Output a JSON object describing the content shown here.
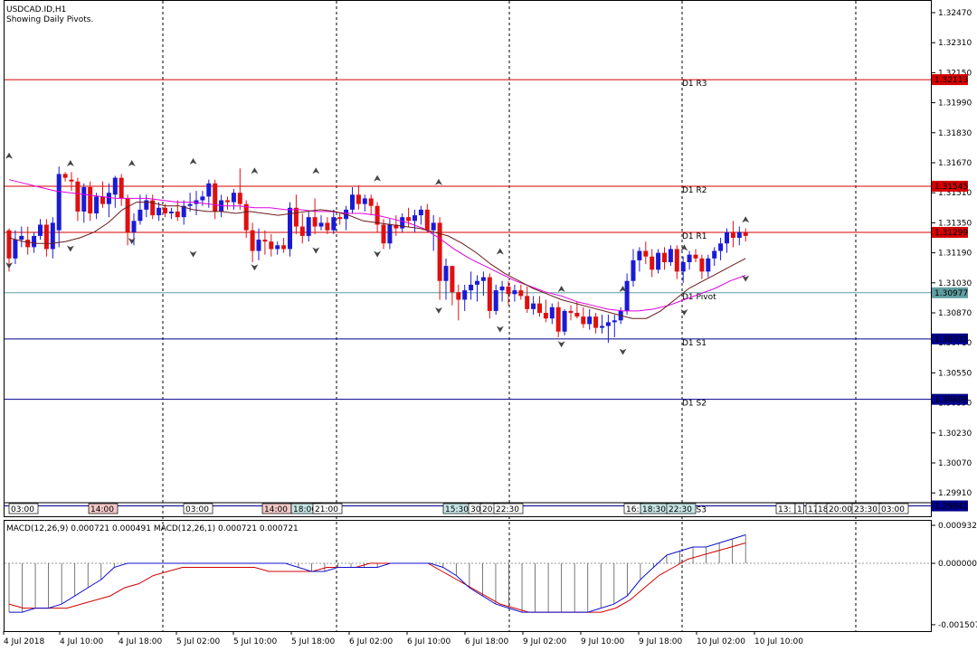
{
  "header": {
    "symbol": "USDCAD.ID,H1",
    "subtitle": "Showing Daily Pivots."
  },
  "colors": {
    "bull": "#1a1ad6",
    "bear": "#e01010",
    "resistance": "#d40000",
    "support": "#00008b",
    "pivot": "#5f9ea0",
    "ma_fast": "#6b1a1a",
    "ma_slow": "#e000e0",
    "macd_main": "#1010d0",
    "macd_signal": "#d00000"
  },
  "pivots": [
    {
      "name": "D1 R3",
      "value": 1.32113,
      "price_label": "1.32113",
      "kind": "resistance"
    },
    {
      "name": "D1 R2",
      "value": 1.31545,
      "price_label": "1.31545",
      "kind": "resistance"
    },
    {
      "name": "D1 R1",
      "value": 1.31299,
      "price_label": "1.31299",
      "kind": "resistance"
    },
    {
      "name": "D1 Pivot",
      "value": 1.30977,
      "price_label": "1.30977",
      "kind": "pivot"
    },
    {
      "name": "D1 S1",
      "value": 1.30731,
      "price_label": "1.30731",
      "kind": "support"
    },
    {
      "name": "D1 S2",
      "value": 1.30409,
      "price_label": "1.30409",
      "kind": "support"
    },
    {
      "name": "D1 S3",
      "value": 1.29841,
      "price_label": "1.29841",
      "kind": "support"
    }
  ],
  "price_axis": {
    "ticks": [
      "1.32470",
      "1.32310",
      "1.32150",
      "1.31990",
      "1.31830",
      "1.31670",
      "1.31510",
      "1.31350",
      "1.31190",
      "1.31030",
      "1.30870",
      "1.30710",
      "1.30550",
      "1.30390",
      "1.30230",
      "1.30070",
      "1.29910"
    ]
  },
  "session_labels": [
    {
      "text": "03:00",
      "style": "plain"
    },
    {
      "text": "14:00",
      "style": "red"
    },
    {
      "text": "03:00",
      "style": "plain"
    },
    {
      "text": "14:00",
      "style": "red"
    },
    {
      "text": "18:00",
      "style": "teal"
    },
    {
      "text": "21:00",
      "style": "plain"
    },
    {
      "text": "15:30",
      "style": "teal"
    },
    {
      "text": "30",
      "style": "plain"
    },
    {
      "text": "20:",
      "style": "plain"
    },
    {
      "text": "22:30",
      "style": "plain"
    },
    {
      "text": "16:",
      "style": "plain"
    },
    {
      "text": "18:30",
      "style": "teal"
    },
    {
      "text": "22:30",
      "style": "teal"
    },
    {
      "text": "13:",
      "style": "plain"
    },
    {
      "text": "1",
      "style": "plain"
    },
    {
      "text": "17",
      "style": "plain"
    },
    {
      "text": "18",
      "style": "plain"
    },
    {
      "text": "20:00",
      "style": "plain"
    },
    {
      "text": "23:30",
      "style": "plain"
    },
    {
      "text": "03:00",
      "style": "plain"
    }
  ],
  "macd": {
    "label": "MACD(12,26,9) 0.000721 0.000491 MACD(12,26,1) 0.000721 0.000721",
    "ticks": [
      "0.000932",
      "0.000000",
      "-0.001507"
    ]
  },
  "time_axis": {
    "labels": [
      "4 Jul 2018",
      "4 Jul 10:00",
      "4 Jul 18:00",
      "5 Jul 02:00",
      "5 Jul 10:00",
      "5 Jul 18:00",
      "6 Jul 02:00",
      "6 Jul 10:00",
      "6 Jul 18:00",
      "9 Jul 02:00",
      "9 Jul 10:00",
      "9 Jul 18:00",
      "10 Jul 02:00",
      "10 Jul 10:00"
    ]
  },
  "chart_data": {
    "type": "candlestick",
    "symbol": "USDCAD.ID",
    "timeframe": "H1",
    "y_range": [
      1.2984,
      1.3251
    ],
    "candles": [
      [
        1.3131,
        1.3132,
        1.3109,
        1.3116
      ],
      [
        1.3116,
        1.3131,
        1.3113,
        1.3126
      ],
      [
        1.3126,
        1.3133,
        1.3122,
        1.3128
      ],
      [
        1.3126,
        1.3133,
        1.3118,
        1.3122
      ],
      [
        1.3122,
        1.313,
        1.3119,
        1.3128
      ],
      [
        1.3128,
        1.3137,
        1.3126,
        1.3134
      ],
      [
        1.3134,
        1.3137,
        1.3117,
        1.3121
      ],
      [
        1.3121,
        1.3138,
        1.3116,
        1.3135
      ],
      [
        1.3131,
        1.3165,
        1.3122,
        1.3161
      ],
      [
        1.3161,
        1.3162,
        1.3157,
        1.3159
      ],
      [
        1.3158,
        1.3162,
        1.3152,
        1.3157
      ],
      [
        1.3157,
        1.3159,
        1.3136,
        1.3141
      ],
      [
        1.3141,
        1.3156,
        1.3135,
        1.3154
      ],
      [
        1.3154,
        1.3157,
        1.3136,
        1.314
      ],
      [
        1.314,
        1.3151,
        1.3137,
        1.3149
      ],
      [
        1.3149,
        1.3157,
        1.3143,
        1.3145
      ],
      [
        1.3145,
        1.3156,
        1.3138,
        1.3151
      ],
      [
        1.315,
        1.316,
        1.3143,
        1.3159
      ],
      [
        1.3159,
        1.3161,
        1.3144,
        1.3148
      ],
      [
        1.3148,
        1.315,
        1.3123,
        1.313
      ],
      [
        1.313,
        1.314,
        1.3123,
        1.3136
      ],
      [
        1.3136,
        1.315,
        1.3134,
        1.3142
      ],
      [
        1.3142,
        1.315,
        1.3138,
        1.3147
      ],
      [
        1.3147,
        1.315,
        1.3137,
        1.3139
      ],
      [
        1.3139,
        1.3146,
        1.3136,
        1.3143
      ],
      [
        1.3143,
        1.3145,
        1.3138,
        1.314
      ],
      [
        1.314,
        1.3143,
        1.3137,
        1.3141
      ],
      [
        1.3141,
        1.3147,
        1.3136,
        1.3138
      ],
      [
        1.3138,
        1.3147,
        1.3134,
        1.3144
      ],
      [
        1.3144,
        1.3151,
        1.3141,
        1.3145
      ],
      [
        1.3145,
        1.3152,
        1.3139,
        1.3147
      ],
      [
        1.3147,
        1.3152,
        1.3144,
        1.3149
      ],
      [
        1.3149,
        1.3158,
        1.3143,
        1.3156
      ],
      [
        1.3156,
        1.3158,
        1.3137,
        1.3141
      ],
      [
        1.3141,
        1.315,
        1.3138,
        1.3147
      ],
      [
        1.3147,
        1.3149,
        1.3142,
        1.3146
      ],
      [
        1.3146,
        1.3153,
        1.3142,
        1.3151
      ],
      [
        1.3151,
        1.3164,
        1.3142,
        1.3145
      ],
      [
        1.3145,
        1.3147,
        1.3127,
        1.3131
      ],
      [
        1.3131,
        1.3135,
        1.3114,
        1.312
      ],
      [
        1.312,
        1.3132,
        1.3115,
        1.3126
      ],
      [
        1.3126,
        1.3131,
        1.3118,
        1.3125
      ],
      [
        1.3125,
        1.3129,
        1.3117,
        1.3121
      ],
      [
        1.3121,
        1.3125,
        1.3118,
        1.3123
      ],
      [
        1.3123,
        1.3127,
        1.3119,
        1.3121
      ],
      [
        1.3121,
        1.3146,
        1.3117,
        1.3143
      ],
      [
        1.3143,
        1.315,
        1.3129,
        1.3133
      ],
      [
        1.3133,
        1.314,
        1.3124,
        1.3128
      ],
      [
        1.3128,
        1.3141,
        1.3125,
        1.3138
      ],
      [
        1.3138,
        1.3148,
        1.3129,
        1.3133
      ],
      [
        1.3133,
        1.3139,
        1.3131,
        1.3135
      ],
      [
        1.3135,
        1.3138,
        1.3129,
        1.3131
      ],
      [
        1.3131,
        1.3142,
        1.3129,
        1.3138
      ],
      [
        1.3138,
        1.314,
        1.3134,
        1.3137
      ],
      [
        1.3137,
        1.3144,
        1.3131,
        1.3142
      ],
      [
        1.3142,
        1.3154,
        1.314,
        1.315
      ],
      [
        1.315,
        1.3155,
        1.3142,
        1.3145
      ],
      [
        1.3145,
        1.315,
        1.3141,
        1.3148
      ],
      [
        1.3148,
        1.315,
        1.3139,
        1.3144
      ],
      [
        1.3144,
        1.3146,
        1.313,
        1.3134
      ],
      [
        1.3134,
        1.3137,
        1.3121,
        1.3124
      ],
      [
        1.3124,
        1.3137,
        1.3121,
        1.3134
      ],
      [
        1.3134,
        1.3139,
        1.3128,
        1.3132
      ],
      [
        1.3132,
        1.314,
        1.313,
        1.3138
      ],
      [
        1.3138,
        1.3143,
        1.3133,
        1.3136
      ],
      [
        1.3136,
        1.3142,
        1.313,
        1.3139
      ],
      [
        1.3139,
        1.3144,
        1.3134,
        1.3142
      ],
      [
        1.3142,
        1.3145,
        1.313,
        1.3131
      ],
      [
        1.3131,
        1.3139,
        1.312,
        1.3135
      ],
      [
        1.3135,
        1.3138,
        1.3094,
        1.3104
      ],
      [
        1.3104,
        1.3116,
        1.3094,
        1.3112
      ],
      [
        1.3112,
        1.3112,
        1.3091,
        1.3098
      ],
      [
        1.3098,
        1.3102,
        1.3083,
        1.3094
      ],
      [
        1.3094,
        1.3102,
        1.3088,
        1.3099
      ],
      [
        1.3099,
        1.3109,
        1.3094,
        1.3102
      ],
      [
        1.3102,
        1.3107,
        1.3093,
        1.3104
      ],
      [
        1.3104,
        1.3109,
        1.3096,
        1.3106
      ],
      [
        1.3106,
        1.3108,
        1.3084,
        1.3088
      ],
      [
        1.3088,
        1.3102,
        1.3086,
        1.3099
      ],
      [
        1.3099,
        1.3104,
        1.3093,
        1.3101
      ],
      [
        1.3101,
        1.3104,
        1.3091,
        1.3097
      ],
      [
        1.3097,
        1.3102,
        1.3093,
        1.3099
      ],
      [
        1.3099,
        1.3102,
        1.3094,
        1.3096
      ],
      [
        1.3096,
        1.3101,
        1.3087,
        1.3089
      ],
      [
        1.3089,
        1.3096,
        1.3086,
        1.3092
      ],
      [
        1.3092,
        1.3096,
        1.3085,
        1.3087
      ],
      [
        1.3087,
        1.3094,
        1.3082,
        1.3084
      ],
      [
        1.3084,
        1.3092,
        1.3081,
        1.309
      ],
      [
        1.309,
        1.3093,
        1.3074,
        1.3077
      ],
      [
        1.3077,
        1.3089,
        1.3075,
        1.3088
      ],
      [
        1.3088,
        1.3091,
        1.3083,
        1.3087
      ],
      [
        1.3087,
        1.3093,
        1.3084,
        1.3085
      ],
      [
        1.3085,
        1.309,
        1.3079,
        1.3081
      ],
      [
        1.3081,
        1.3089,
        1.3078,
        1.3085
      ],
      [
        1.3085,
        1.3087,
        1.3076,
        1.3079
      ],
      [
        1.3079,
        1.3086,
        1.3076,
        1.308
      ],
      [
        1.308,
        1.3086,
        1.3071,
        1.3082
      ],
      [
        1.3082,
        1.3086,
        1.3074,
        1.3083
      ],
      [
        1.3083,
        1.309,
        1.3081,
        1.3088
      ],
      [
        1.3088,
        1.3108,
        1.3086,
        1.3104
      ],
      [
        1.3104,
        1.3121,
        1.3101,
        1.3115
      ],
      [
        1.3115,
        1.3122,
        1.3109,
        1.312
      ],
      [
        1.312,
        1.3125,
        1.3113,
        1.3117
      ],
      [
        1.3117,
        1.3121,
        1.3106,
        1.311
      ],
      [
        1.311,
        1.3121,
        1.3108,
        1.3119
      ],
      [
        1.3119,
        1.3122,
        1.311,
        1.3114
      ],
      [
        1.3114,
        1.3123,
        1.3112,
        1.3121
      ],
      [
        1.3121,
        1.3123,
        1.3105,
        1.3109
      ],
      [
        1.3109,
        1.3117,
        1.3103,
        1.3114
      ],
      [
        1.3114,
        1.312,
        1.311,
        1.3118
      ],
      [
        1.3118,
        1.3121,
        1.3114,
        1.3116
      ],
      [
        1.3116,
        1.3118,
        1.3105,
        1.3109
      ],
      [
        1.3109,
        1.3118,
        1.3106,
        1.3116
      ],
      [
        1.3116,
        1.3122,
        1.3112,
        1.312
      ],
      [
        1.312,
        1.3127,
        1.3115,
        1.3124
      ],
      [
        1.3124,
        1.3132,
        1.3119,
        1.313
      ],
      [
        1.313,
        1.3136,
        1.3122,
        1.3127
      ],
      [
        1.3127,
        1.3133,
        1.3123,
        1.313
      ],
      [
        1.313,
        1.3132,
        1.3125,
        1.3128
      ]
    ],
    "ma_fast": [
      1.3127,
      1.3125,
      1.3124,
      1.3124,
      1.3125,
      1.3127,
      1.313,
      1.3135,
      1.3142,
      1.3146,
      1.3146,
      1.3144,
      1.3144,
      1.3142,
      1.3141,
      1.3141,
      1.314,
      1.3141,
      1.314,
      1.3139,
      1.314,
      1.3141,
      1.3142,
      1.3141,
      1.3139,
      1.3136,
      1.3135,
      1.3134,
      1.3133,
      1.3132,
      1.313,
      1.3128,
      1.3124,
      1.3119,
      1.3113,
      1.3108,
      1.3104,
      1.31,
      1.3097,
      1.3094,
      1.3092,
      1.309,
      1.3088,
      1.3086,
      1.3084,
      1.3084,
      1.3088,
      1.3094,
      1.31,
      1.3104,
      1.3108,
      1.3112,
      1.3116
    ],
    "ma_slow": [
      1.3158,
      1.3156,
      1.3154,
      1.3152,
      1.3151,
      1.315,
      1.3149,
      1.3148,
      1.3148,
      1.3148,
      1.3147,
      1.3146,
      1.3146,
      1.3145,
      1.3144,
      1.3144,
      1.3143,
      1.3143,
      1.3142,
      1.3142,
      1.3141,
      1.3141,
      1.314,
      1.314,
      1.3139,
      1.3137,
      1.3135,
      1.3132,
      1.3127,
      1.3121,
      1.3116,
      1.3112,
      1.3108,
      1.3104,
      1.3101,
      1.3098,
      1.3096,
      1.3093,
      1.3091,
      1.3089,
      1.3088,
      1.3088,
      1.3089,
      1.3091,
      1.3094,
      1.3097,
      1.31,
      1.3104,
      1.3107
    ],
    "macd_main": [
      -0.0012,
      -0.0012,
      -0.0011,
      -0.0011,
      -0.001,
      -0.0008,
      -0.0006,
      -0.0004,
      -0.0001,
      0.0,
      0.0,
      0.0,
      0.0,
      0.0,
      0.0,
      0.0,
      0.0,
      0.0,
      0.0,
      0.0,
      0.0,
      0.0,
      -0.0001,
      -0.0002,
      -0.0002,
      -0.0001,
      -0.0001,
      -0.0001,
      -0.0001,
      0.0,
      0.0,
      0.0,
      0.0,
      -0.0001,
      -0.0003,
      -0.0006,
      -0.0008,
      -0.001,
      -0.0011,
      -0.0012,
      -0.0012,
      -0.0012,
      -0.0012,
      -0.0012,
      -0.0012,
      -0.0011,
      -0.001,
      -0.0008,
      -0.0004,
      -0.0001,
      0.0002,
      0.0003,
      0.0004,
      0.0004,
      0.0005,
      0.0006,
      0.0007
    ],
    "macd_signal": [
      -0.001,
      -0.0011,
      -0.0011,
      -0.0011,
      -0.0011,
      -0.001,
      -0.0009,
      -0.0008,
      -0.0006,
      -0.0005,
      -0.0003,
      -0.0002,
      -0.0001,
      -0.0001,
      -0.0001,
      -0.0001,
      -0.0001,
      -0.0001,
      -0.0002,
      -0.0002,
      -0.0002,
      -0.0002,
      -0.0001,
      -0.0001,
      -0.0001,
      0.0,
      0.0,
      0.0,
      0.0,
      0.0,
      -0.0002,
      -0.0004,
      -0.0006,
      -0.0008,
      -0.001,
      -0.0011,
      -0.0012,
      -0.0012,
      -0.0012,
      -0.0012,
      -0.0012,
      -0.0012,
      -0.0011,
      -0.0009,
      -0.0006,
      -0.0003,
      -0.0001,
      0.0001,
      0.0002,
      0.0003,
      0.0004,
      0.0005
    ],
    "fractals_up": [
      1.3171,
      1.3167,
      1.3167,
      1.3168,
      1.3163,
      1.3163,
      1.3159,
      1.3157,
      1.312,
      1.31,
      1.31,
      1.3122,
      1.3137
    ],
    "fractals_down": [
      1.3112,
      1.3121,
      1.3125,
      1.3118,
      1.3111,
      1.312,
      1.3118,
      1.3088,
      1.3078,
      1.307,
      1.3066,
      1.3087,
      1.3105
    ]
  }
}
